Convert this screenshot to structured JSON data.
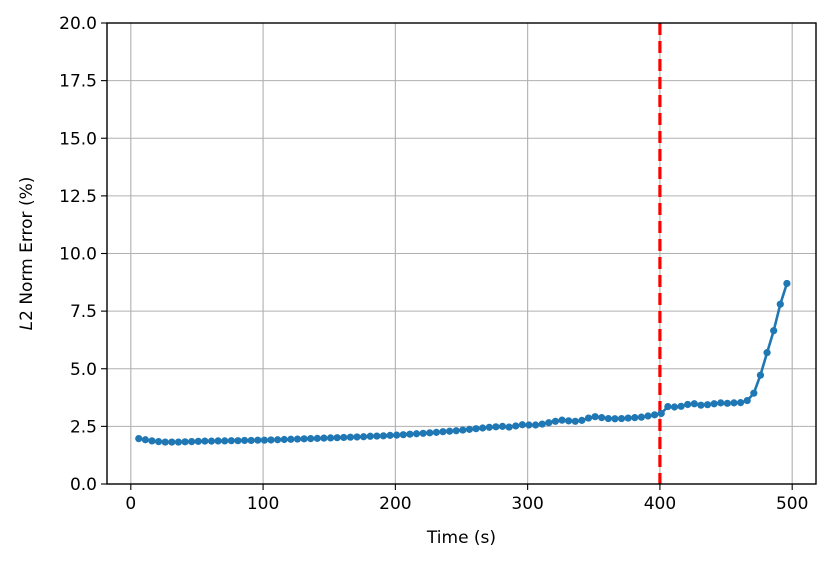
{
  "chart_data": {
    "type": "line",
    "xlabel": "Time (s)",
    "ylabel_italic": "L",
    "ylabel_rest": "2 Norm Error (%)",
    "xlim": [
      -18,
      518
    ],
    "ylim": [
      0,
      20
    ],
    "xticks": [
      0,
      100,
      200,
      300,
      400,
      500
    ],
    "xtick_labels": [
      "0",
      "100",
      "200",
      "300",
      "400",
      "500"
    ],
    "yticks": [
      0,
      2.5,
      5,
      7.5,
      10,
      12.5,
      15,
      17.5,
      20
    ],
    "ytick_labels": [
      "0.0",
      "2.5",
      "5.0",
      "7.5",
      "10.0",
      "12.5",
      "15.0",
      "17.5",
      "20.0"
    ],
    "grid": true,
    "series_color": "#1f77b4",
    "vline": {
      "x": 400,
      "color": "#ff0000",
      "style": "dashed"
    },
    "series": [
      {
        "x": [
          6,
          11,
          16,
          21,
          26,
          31,
          36,
          41,
          46,
          51,
          56,
          61,
          66,
          71,
          76,
          81,
          86,
          91,
          96,
          101,
          106,
          111,
          116,
          121,
          126,
          131,
          136,
          141,
          146,
          151,
          156,
          161,
          166,
          171,
          176,
          181,
          186,
          191,
          196,
          201,
          206,
          211,
          216,
          221,
          226,
          231,
          236,
          241,
          246,
          251,
          256,
          261,
          266,
          271,
          276,
          281,
          286,
          291,
          296,
          301,
          306,
          311,
          316,
          321,
          326,
          331,
          336,
          341,
          346,
          351,
          356,
          361,
          366,
          371,
          376,
          381,
          386,
          391,
          396,
          401,
          406,
          411,
          416,
          421,
          426,
          431,
          436,
          441,
          446,
          451,
          456,
          461,
          466,
          471,
          476,
          481,
          486,
          491,
          496
        ],
        "values": [
          1.97,
          1.92,
          1.87,
          1.84,
          1.82,
          1.82,
          1.82,
          1.83,
          1.84,
          1.85,
          1.86,
          1.86,
          1.87,
          1.87,
          1.88,
          1.88,
          1.89,
          1.89,
          1.9,
          1.9,
          1.91,
          1.92,
          1.93,
          1.94,
          1.95,
          1.96,
          1.97,
          1.98,
          1.99,
          2.0,
          2.01,
          2.02,
          2.03,
          2.04,
          2.05,
          2.07,
          2.08,
          2.09,
          2.11,
          2.12,
          2.14,
          2.16,
          2.18,
          2.2,
          2.22,
          2.24,
          2.27,
          2.29,
          2.31,
          2.34,
          2.37,
          2.4,
          2.43,
          2.46,
          2.48,
          2.5,
          2.47,
          2.52,
          2.57,
          2.56,
          2.56,
          2.6,
          2.66,
          2.72,
          2.77,
          2.74,
          2.72,
          2.76,
          2.86,
          2.92,
          2.88,
          2.84,
          2.83,
          2.84,
          2.86,
          2.88,
          2.9,
          2.95,
          3.0,
          3.06,
          3.36,
          3.34,
          3.37,
          3.45,
          3.48,
          3.42,
          3.44,
          3.48,
          3.52,
          3.5,
          3.52,
          3.53,
          3.62,
          3.94,
          4.72,
          5.7,
          6.65,
          7.8,
          8.7
        ]
      }
    ]
  }
}
